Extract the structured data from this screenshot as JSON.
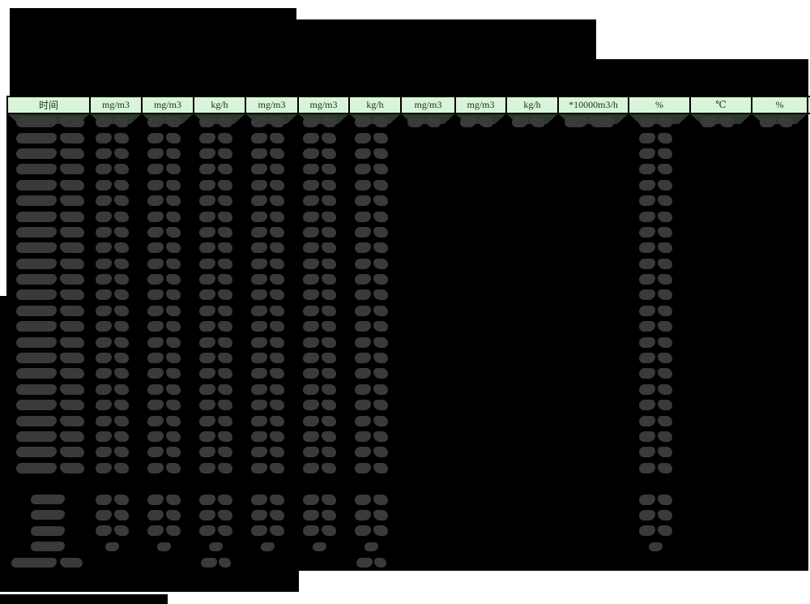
{
  "document": {
    "type": "redacted-monitoring-report",
    "title_visible": false
  },
  "colors": {
    "page_background": "#ffffff",
    "redaction_black": "#000000",
    "header_cell_background": "#d9f5d9",
    "header_cell_text": "#213321",
    "header_shadow_green": "#2b3a2b",
    "redacted_value_blob": "#3a3a3a",
    "table_border": "#000000"
  },
  "table": {
    "columns": [
      {
        "id": "time",
        "label": "时间"
      },
      {
        "id": "mg-m3-1",
        "label": "mg/m3"
      },
      {
        "id": "mg-m3-2",
        "label": "mg/m3"
      },
      {
        "id": "kg-h-1",
        "label": "kg/h"
      },
      {
        "id": "mg-m3-3",
        "label": "mg/m3"
      },
      {
        "id": "mg-m3-4",
        "label": "mg/m3"
      },
      {
        "id": "kg-h-2",
        "label": "kg/h"
      },
      {
        "id": "mg-m3-5",
        "label": "mg/m3"
      },
      {
        "id": "mg-m3-6",
        "label": "mg/m3"
      },
      {
        "id": "kg-h-3",
        "label": "kg/h"
      },
      {
        "id": "flow-rate",
        "label": "*10000m3/h"
      },
      {
        "id": "percent-1",
        "label": "%"
      },
      {
        "id": "temperature",
        "label": "℃"
      },
      {
        "id": "percent-2",
        "label": "%"
      }
    ],
    "rows": {
      "main_count": 23,
      "first_row_columns": [
        0,
        1,
        2,
        3,
        4,
        5,
        6,
        7,
        8,
        9,
        10,
        11,
        12,
        13
      ],
      "standard_columns": [
        0,
        1,
        2,
        3,
        4,
        5,
        6,
        11
      ],
      "summary_count": 3,
      "summary_columns": [
        0,
        1,
        2,
        3,
        4,
        5,
        6,
        11
      ],
      "small_summary_columns": [
        0,
        1,
        2,
        3,
        4,
        5,
        6,
        11
      ],
      "footer_label_columns": [
        0,
        3,
        6
      ],
      "all_values_redacted": true
    }
  }
}
